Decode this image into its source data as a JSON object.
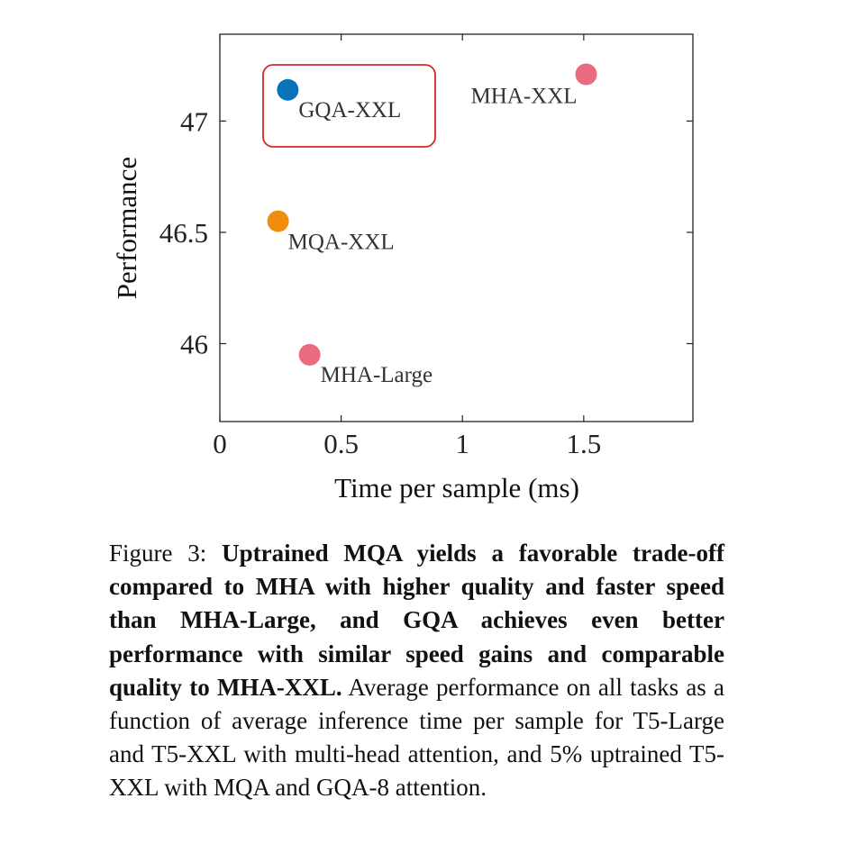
{
  "chart_data": {
    "type": "scatter",
    "xlabel": "Time per sample (ms)",
    "ylabel": "Performance",
    "xlim": [
      0,
      1.95
    ],
    "ylim": [
      45.65,
      47.39
    ],
    "x_ticks": [
      0,
      0.5,
      1,
      1.5
    ],
    "x_tick_labels": [
      "0",
      "0.5",
      "1",
      "1.5"
    ],
    "y_ticks": [
      46,
      46.5,
      47
    ],
    "y_tick_labels": [
      "46",
      "46.5",
      "47"
    ],
    "grid": false,
    "points": [
      {
        "label": "MHA-XXL",
        "x": 1.51,
        "y": 47.21,
        "color": "#ea6a7f"
      },
      {
        "label": "GQA-XXL",
        "x": 0.28,
        "y": 47.14,
        "color": "#0a73b8",
        "highlighted": true
      },
      {
        "label": "MQA-XXL",
        "x": 0.24,
        "y": 46.55,
        "color": "#f08e0b"
      },
      {
        "label": "MHA-Large",
        "x": 0.37,
        "y": 45.95,
        "color": "#ea6a7f"
      }
    ],
    "highlight_box_color": "#d62728"
  },
  "caption": {
    "prefix": "Figure 3: ",
    "bold": "Uptrained MQA yields a favorable trade-off compared to MHA with higher quality and faster speed than MHA-Large, and GQA achieves even better performance with similar speed gains and comparable quality to MHA-XXL.",
    "text": " Average performance on all tasks as a function of average inference time per sample for T5-Large and T5-XXL with multi-head attention, and 5% uptrained T5-XXL with MQA and GQA-8 attention."
  }
}
